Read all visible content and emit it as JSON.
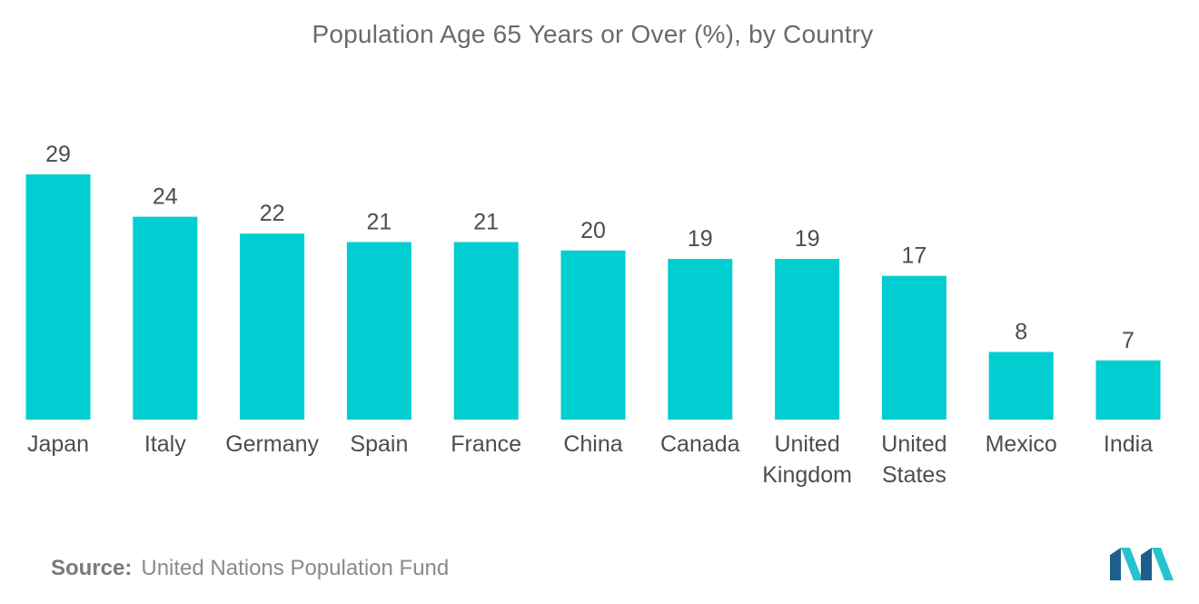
{
  "chart_data": {
    "type": "bar",
    "title": "Population Age 65 Years or Over (%), by Country",
    "categories": [
      [
        "Japan"
      ],
      [
        "Italy"
      ],
      [
        "Germany"
      ],
      [
        "Spain"
      ],
      [
        "France"
      ],
      [
        "China"
      ],
      [
        "Canada"
      ],
      [
        "United",
        "Kingdom"
      ],
      [
        "United",
        "States"
      ],
      [
        "Mexico"
      ],
      [
        "India"
      ]
    ],
    "values": [
      29,
      24,
      22,
      21,
      21,
      20,
      19,
      19,
      17,
      8,
      7
    ],
    "xlabel": "",
    "ylabel": "",
    "ylim": [
      0,
      29
    ],
    "grid": false,
    "legend": "none",
    "bar_color": "#00ced1"
  },
  "footer": {
    "source_label": "Source:",
    "source_text": "United Nations Population Fund"
  },
  "logo": {
    "icon": "mordor-intelligence-logo-icon",
    "color_dark": "#1d5f8c",
    "color_light": "#26c2cf"
  }
}
